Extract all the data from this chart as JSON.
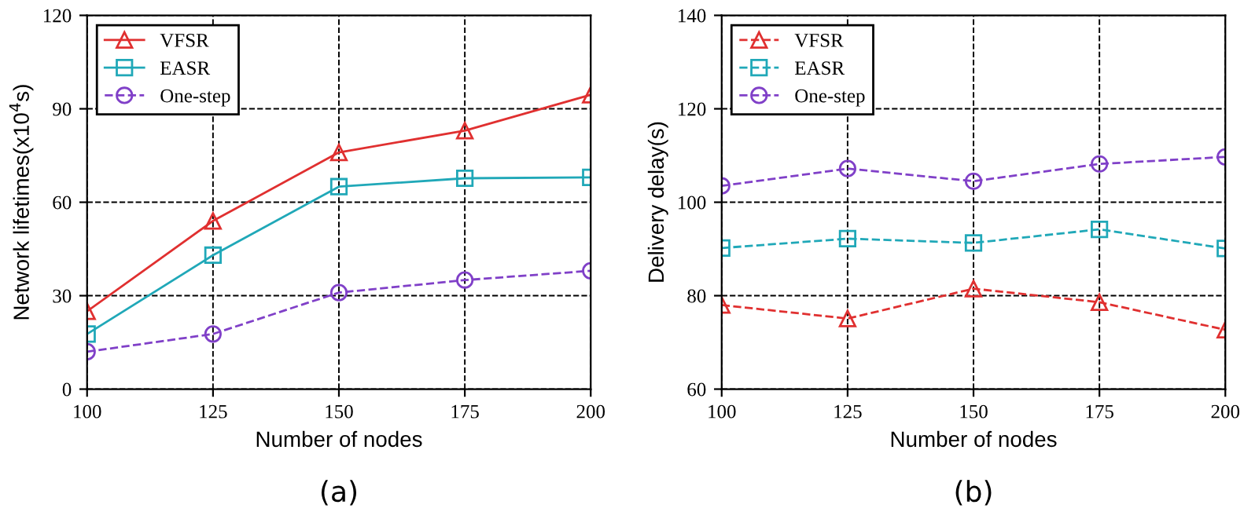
{
  "chart_data": [
    {
      "type": "line",
      "xlabel": "Number of nodes",
      "ylabel": "Network lifetimes(x10$^{4}$s)",
      "x": [
        100,
        125,
        150,
        175,
        200
      ],
      "xlim": [
        100,
        200
      ],
      "xticks": [
        100,
        125,
        150,
        175,
        200
      ],
      "ylim": [
        0,
        120
      ],
      "yticks": [
        0,
        30,
        60,
        90,
        120
      ],
      "grid": true,
      "legend": "top left",
      "annotations": [
        "(a)"
      ],
      "series": [
        {
          "name": "VFSR",
          "color": "#e03030",
          "marker": "triangle",
          "line_style": "solid",
          "values": [
            25,
            54,
            76,
            83,
            94.5
          ]
        },
        {
          "name": "EASR",
          "color": "#20a8b8",
          "marker": "square",
          "line_style": "solid",
          "values": [
            17.7,
            43,
            65,
            67.7,
            68
          ]
        },
        {
          "name": "One-step",
          "color": "#8040c8",
          "marker": "circle",
          "line_style": "dashed",
          "values": [
            12,
            17.7,
            31,
            35,
            38
          ]
        }
      ]
    },
    {
      "type": "line",
      "xlabel": "Number of nodes",
      "ylabel": "Delivery delay(s)",
      "x": [
        100,
        125,
        150,
        175,
        200
      ],
      "xlim": [
        100,
        200
      ],
      "xticks": [
        100,
        125,
        150,
        175,
        200
      ],
      "ylim": [
        60,
        140
      ],
      "yticks": [
        60,
        80,
        100,
        120,
        140
      ],
      "grid": true,
      "legend": "top left",
      "annotations": [
        "(b)"
      ],
      "series": [
        {
          "name": "VFSR",
          "color": "#e03030",
          "marker": "triangle",
          "line_style": "dashed",
          "values": [
            78,
            75.1,
            81.5,
            78.6,
            72.7
          ]
        },
        {
          "name": "EASR",
          "color": "#20a8b8",
          "marker": "square",
          "line_style": "dashed",
          "values": [
            90.2,
            92.2,
            91.3,
            94.2,
            90.1
          ]
        },
        {
          "name": "One-step",
          "color": "#8040c8",
          "marker": "circle",
          "line_style": "dashed",
          "values": [
            103.5,
            107.2,
            104.5,
            108.2,
            109.7
          ]
        }
      ]
    }
  ]
}
